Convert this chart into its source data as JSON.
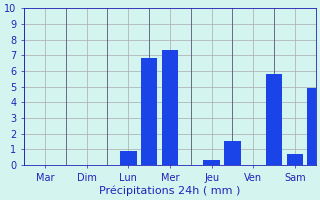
{
  "bar_positions": [
    2.5,
    3.0,
    3.5,
    4.5,
    5.0,
    6.0,
    6.5,
    7.0
  ],
  "bar_values": [
    0.9,
    6.8,
    7.3,
    0.3,
    1.5,
    5.8,
    0.7,
    4.9
  ],
  "bar_width": 0.4,
  "bar_color": "#1a44e8",
  "background_color": "#d4f5ef",
  "grid_color": "#aaaaaa",
  "xlabel": "Précipitations 24h ( mm )",
  "xlabel_color": "#2222bb",
  "xlabel_fontsize": 8,
  "tick_labels": [
    "Mar",
    "Dim",
    "Lun",
    "Mer",
    "Jeu",
    "Ven",
    "Sam"
  ],
  "tick_positions": [
    0.5,
    1.5,
    2.5,
    3.5,
    4.5,
    5.5,
    6.5
  ],
  "sep_positions": [
    0,
    1,
    2,
    3,
    4,
    5,
    6,
    7
  ],
  "xlim": [
    0,
    7
  ],
  "ylim": [
    0,
    10
  ],
  "yticks": [
    0,
    1,
    2,
    3,
    4,
    5,
    6,
    7,
    8,
    9,
    10
  ],
  "ytick_fontsize": 7,
  "xtick_fontsize": 7,
  "tick_color": "#2222bb",
  "sep_color": "#555577",
  "sep_linewidth": 0.6
}
